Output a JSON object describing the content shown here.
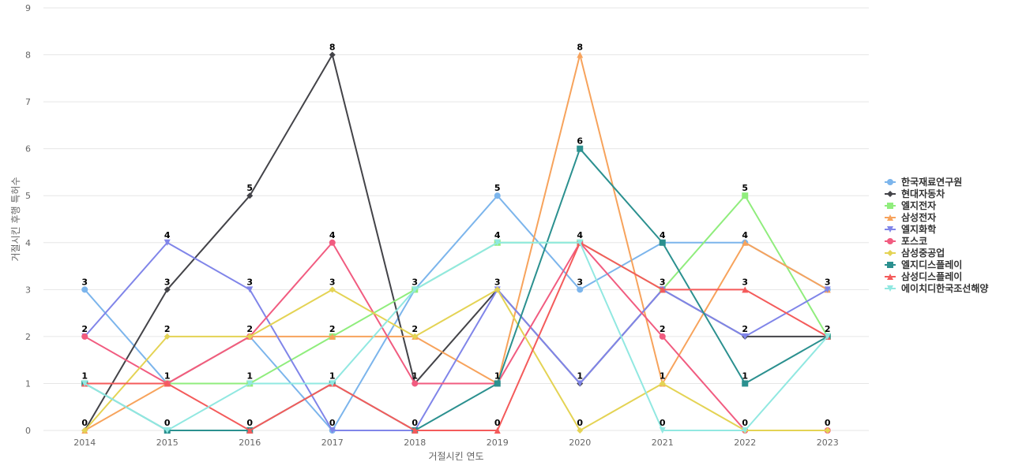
{
  "chart_data": {
    "type": "line",
    "xlabel": "거절시킨 연도",
    "ylabel": "거절시킨 후행 특허수",
    "ylim": [
      0,
      9
    ],
    "yticks": [
      0,
      1,
      2,
      3,
      4,
      5,
      6,
      7,
      8,
      9
    ],
    "x": [
      "2014",
      "2015",
      "2016",
      "2017",
      "2018",
      "2019",
      "2020",
      "2021",
      "2022",
      "2023"
    ],
    "grid": "horizontal",
    "legend_position": "right",
    "series": [
      {
        "name": "한국재료연구원",
        "color": "#7cb5ec",
        "marker": "circle",
        "values": [
          3,
          1,
          2,
          0,
          3,
          5,
          3,
          4,
          4,
          3
        ]
      },
      {
        "name": "현대자동차",
        "color": "#434348",
        "marker": "diamond",
        "values": [
          0,
          3,
          5,
          8,
          1,
          3,
          1,
          3,
          2,
          2
        ]
      },
      {
        "name": "엘지전자",
        "color": "#90ed7d",
        "marker": "square",
        "values": [
          1,
          1,
          1,
          2,
          3,
          4,
          4,
          3,
          5,
          2
        ]
      },
      {
        "name": "삼성전자",
        "color": "#f7a35c",
        "marker": "triangle",
        "values": [
          0,
          1,
          2,
          2,
          2,
          1,
          8,
          1,
          4,
          3
        ]
      },
      {
        "name": "엘지화학",
        "color": "#8085e9",
        "marker": "triangle-down",
        "values": [
          2,
          4,
          3,
          0,
          0,
          3,
          1,
          3,
          2,
          3
        ]
      },
      {
        "name": "포스코",
        "color": "#f15c80",
        "marker": "circle",
        "values": [
          2,
          1,
          2,
          4,
          1,
          1,
          4,
          2,
          0,
          0
        ]
      },
      {
        "name": "삼성중공업",
        "color": "#e4d354",
        "marker": "diamond",
        "values": [
          0,
          2,
          2,
          3,
          2,
          3,
          0,
          1,
          0,
          0
        ]
      },
      {
        "name": "엘지디스플레이",
        "color": "#2b908f",
        "marker": "square",
        "values": [
          1,
          0,
          0,
          1,
          0,
          1,
          6,
          4,
          1,
          2
        ]
      },
      {
        "name": "삼성디스플레이",
        "color": "#f45b5b",
        "marker": "triangle",
        "values": [
          1,
          1,
          0,
          1,
          0,
          0,
          4,
          3,
          3,
          2
        ]
      },
      {
        "name": "에이치디한국조선해양",
        "color": "#91e8e1",
        "marker": "triangle-down",
        "values": [
          1,
          0,
          1,
          1,
          3,
          4,
          4,
          0,
          0,
          2
        ]
      }
    ],
    "data_labels": [
      {
        "x": "2014",
        "value": 3
      },
      {
        "x": "2014",
        "value": 2
      },
      {
        "x": "2014",
        "value": 1
      },
      {
        "x": "2014",
        "value": 0
      },
      {
        "x": "2015",
        "value": 4
      },
      {
        "x": "2015",
        "value": 3
      },
      {
        "x": "2015",
        "value": 2
      },
      {
        "x": "2015",
        "value": 1
      },
      {
        "x": "2015",
        "value": 0
      },
      {
        "x": "2016",
        "value": 5
      },
      {
        "x": "2016",
        "value": 3
      },
      {
        "x": "2016",
        "value": 2
      },
      {
        "x": "2016",
        "value": 1
      },
      {
        "x": "2016",
        "value": 0
      },
      {
        "x": "2017",
        "value": 8
      },
      {
        "x": "2017",
        "value": 4
      },
      {
        "x": "2017",
        "value": 3
      },
      {
        "x": "2017",
        "value": 2
      },
      {
        "x": "2017",
        "value": 1
      },
      {
        "x": "2017",
        "value": 0
      },
      {
        "x": "2018",
        "value": 3
      },
      {
        "x": "2018",
        "value": 2
      },
      {
        "x": "2018",
        "value": 1
      },
      {
        "x": "2018",
        "value": 0
      },
      {
        "x": "2019",
        "value": 5
      },
      {
        "x": "2019",
        "value": 4
      },
      {
        "x": "2019",
        "value": 3
      },
      {
        "x": "2019",
        "value": 1
      },
      {
        "x": "2019",
        "value": 0
      },
      {
        "x": "2020",
        "value": 8
      },
      {
        "x": "2020",
        "value": 6
      },
      {
        "x": "2020",
        "value": 4
      },
      {
        "x": "2020",
        "value": 3
      },
      {
        "x": "2020",
        "value": 1
      },
      {
        "x": "2020",
        "value": 0
      },
      {
        "x": "2021",
        "value": 4
      },
      {
        "x": "2021",
        "value": 3
      },
      {
        "x": "2021",
        "value": 2
      },
      {
        "x": "2021",
        "value": 1
      },
      {
        "x": "2021",
        "value": 0
      },
      {
        "x": "2022",
        "value": 5
      },
      {
        "x": "2022",
        "value": 4
      },
      {
        "x": "2022",
        "value": 3
      },
      {
        "x": "2022",
        "value": 2
      },
      {
        "x": "2022",
        "value": 1
      },
      {
        "x": "2022",
        "value": 0
      },
      {
        "x": "2023",
        "value": 3
      },
      {
        "x": "2023",
        "value": 2
      },
      {
        "x": "2023",
        "value": 0
      }
    ]
  }
}
